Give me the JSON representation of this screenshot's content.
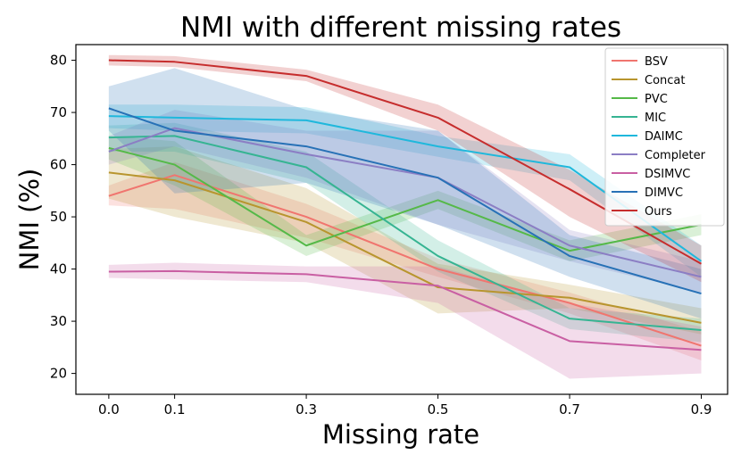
{
  "chart_data": {
    "type": "line",
    "title": "NMI with different missing rates",
    "xlabel": "Missing rate",
    "ylabel": "NMI (%)",
    "x": [
      0.0,
      0.1,
      0.3,
      0.5,
      0.7,
      0.9
    ],
    "x_tick_labels": [
      "0.0",
      "0.1",
      "0.3",
      "0.5",
      "0.7",
      "0.9"
    ],
    "xlim": [
      -0.05,
      0.94
    ],
    "ylim": [
      16,
      83
    ],
    "y_ticks": [
      20,
      30,
      40,
      50,
      60,
      70,
      80
    ],
    "grid": false,
    "legend_position": "top-right",
    "series": [
      {
        "name": "BSV",
        "color": "#f0756f",
        "values": [
          54.0,
          58.0,
          50.0,
          40.0,
          33.5,
          25.3
        ],
        "lower": [
          52.2,
          51.5,
          46.0,
          38.5,
          31.5,
          22.5
        ],
        "upper": [
          56.0,
          60.5,
          52.5,
          42.0,
          35.5,
          28.0
        ]
      },
      {
        "name": "Concat",
        "color": "#b8952e",
        "values": [
          58.5,
          57.0,
          49.0,
          36.5,
          34.5,
          29.7
        ],
        "lower": [
          53.5,
          50.0,
          45.0,
          31.5,
          32.5,
          27.5
        ],
        "upper": [
          63.0,
          63.5,
          55.5,
          41.0,
          37.0,
          32.5
        ]
      },
      {
        "name": "PVC",
        "color": "#55b948",
        "values": [
          63.2,
          60.0,
          44.5,
          53.2,
          43.5,
          48.5
        ],
        "lower": [
          61.0,
          56.0,
          42.5,
          51.5,
          41.5,
          46.5
        ],
        "upper": [
          65.5,
          64.5,
          46.5,
          55.0,
          45.5,
          50.5
        ]
      },
      {
        "name": "MIC",
        "color": "#36b492",
        "values": [
          65.2,
          65.5,
          59.5,
          42.5,
          30.5,
          28.3
        ],
        "lower": [
          62.5,
          62.5,
          56.5,
          39.5,
          28.5,
          26.0
        ],
        "upper": [
          67.5,
          68.0,
          62.5,
          45.5,
          32.5,
          30.5
        ]
      },
      {
        "name": "DAIMC",
        "color": "#1fb8dc",
        "values": [
          69.3,
          69.0,
          68.5,
          63.5,
          59.5,
          41.5
        ],
        "lower": [
          67.0,
          66.5,
          66.0,
          61.5,
          57.0,
          38.5
        ],
        "upper": [
          71.5,
          71.5,
          71.0,
          65.5,
          62.0,
          44.5
        ]
      },
      {
        "name": "Completer",
        "color": "#8b7ec4",
        "values": [
          62.5,
          67.0,
          62.0,
          57.5,
          44.5,
          38.5
        ],
        "lower": [
          60.0,
          63.5,
          57.5,
          48.5,
          41.5,
          35.5
        ],
        "upper": [
          65.5,
          70.5,
          66.5,
          66.5,
          47.5,
          41.5
        ]
      },
      {
        "name": "DSIMVC",
        "color": "#c95fa3",
        "values": [
          39.5,
          39.6,
          39.0,
          36.8,
          26.2,
          24.5
        ],
        "lower": [
          38.3,
          38.0,
          37.5,
          33.5,
          19.0,
          20.0
        ],
        "upper": [
          40.8,
          41.2,
          40.5,
          40.5,
          33.5,
          29.0
        ]
      },
      {
        "name": "DIMVC",
        "color": "#2771b6",
        "values": [
          70.8,
          66.5,
          63.5,
          57.5,
          42.5,
          35.3
        ],
        "lower": [
          66.5,
          54.5,
          56.5,
          48.5,
          38.5,
          30.5
        ],
        "upper": [
          75.0,
          78.5,
          70.5,
          66.5,
          46.5,
          40.0
        ]
      },
      {
        "name": "Ours",
        "color": "#c62d2d",
        "values": [
          80.0,
          79.7,
          77.0,
          69.0,
          55.3,
          41.0
        ],
        "lower": [
          79.0,
          78.7,
          76.0,
          66.5,
          50.0,
          37.5
        ],
        "upper": [
          81.0,
          80.8,
          78.2,
          71.5,
          59.0,
          44.5
        ]
      }
    ]
  }
}
